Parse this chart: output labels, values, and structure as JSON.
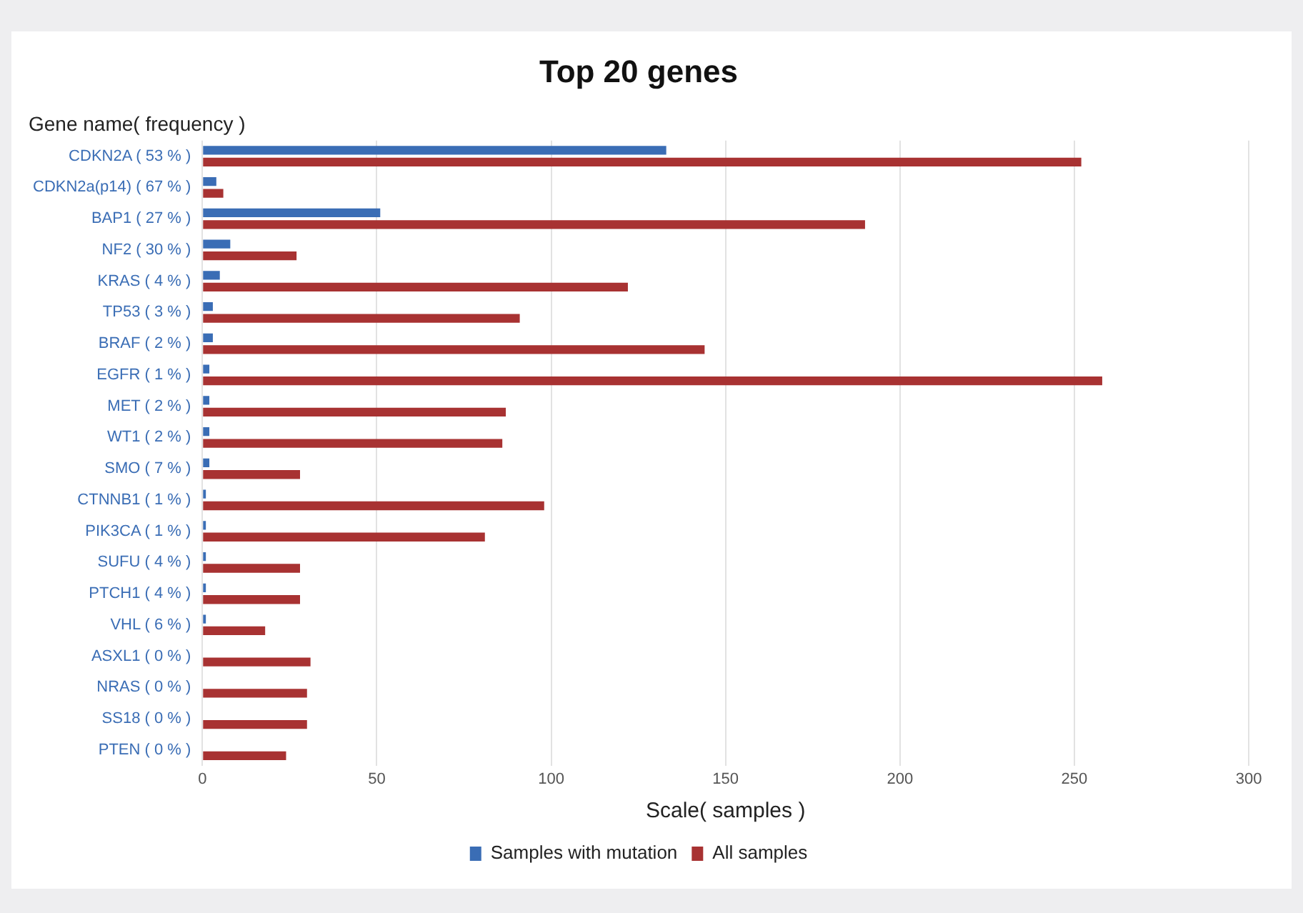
{
  "chart_data": {
    "type": "bar",
    "orientation": "horizontal",
    "title": "Top 20 genes",
    "xlabel": "Scale( samples )",
    "ylabel": "Gene name( frequency )",
    "categories": [
      "CDKN2A ( 53 % )",
      "CDKN2a(p14) ( 67 % )",
      "BAP1 ( 27 % )",
      "NF2 ( 30 % )",
      "KRAS ( 4 % )",
      "TP53 ( 3 % )",
      "BRAF ( 2 % )",
      "EGFR ( 1 % )",
      "MET ( 2 % )",
      "WT1 ( 2 % )",
      "SMO ( 7 % )",
      "CTNNB1 ( 1 % )",
      "PIK3CA ( 1 % )",
      "SUFU ( 4 % )",
      "PTCH1 ( 4 % )",
      "VHL ( 6 % )",
      "ASXL1 ( 0 % )",
      "NRAS ( 0 % )",
      "SS18 ( 0 % )",
      "PTEN ( 0 % )"
    ],
    "series": [
      {
        "name": "Samples with mutation",
        "color": "#3a6db5",
        "values": [
          133,
          4,
          51,
          8,
          5,
          3,
          3,
          2,
          2,
          2,
          2,
          1,
          1,
          1,
          1,
          1,
          0,
          0,
          0,
          0
        ]
      },
      {
        "name": "All samples",
        "color": "#a83232",
        "values": [
          252,
          6,
          190,
          27,
          122,
          91,
          144,
          258,
          87,
          86,
          28,
          98,
          81,
          28,
          28,
          18,
          31,
          30,
          30,
          24
        ]
      }
    ],
    "xlim": [
      0,
      300
    ],
    "xticks": [
      0,
      50,
      100,
      150,
      200,
      250,
      300
    ],
    "grid": "x",
    "legend": "bottom"
  }
}
